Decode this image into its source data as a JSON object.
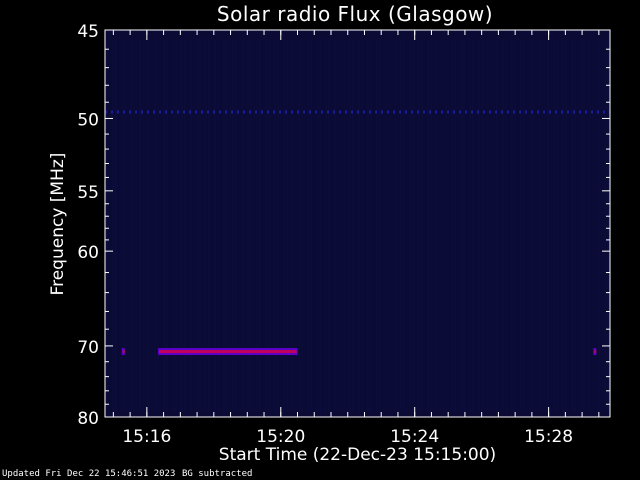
{
  "chart_data": {
    "type": "heatmap",
    "title": "Solar radio Flux (Glasgow)",
    "xlabel": "Start Time (22-Dec-23 15:15:00)",
    "ylabel": "Frequency [MHz]",
    "x_range": [
      "15:14:45",
      "15:29:50"
    ],
    "y_range": [
      45,
      80
    ],
    "x_ticks": [
      "15:16",
      "15:20",
      "15:24",
      "15:28"
    ],
    "y_ticks": [
      45,
      50,
      55,
      60,
      70,
      80
    ],
    "colors": {
      "background": "#000000",
      "field": "#0a0a35",
      "emission": "#c0005a",
      "emission_edge": "#5a00c8",
      "interference": "#1a1aa0"
    },
    "features": [
      {
        "kind": "interference-band",
        "freq_mhz": 49.6,
        "start": "15:14:45",
        "end": "15:29:50"
      },
      {
        "kind": "emission",
        "freq_mhz": 70.7,
        "start": "15:15:15",
        "end": "15:15:20"
      },
      {
        "kind": "emission",
        "freq_mhz": 70.7,
        "start": "15:16:20",
        "end": "15:20:30"
      },
      {
        "kind": "emission",
        "freq_mhz": 70.7,
        "start": "15:29:20",
        "end": "15:29:25"
      }
    ]
  },
  "footer": {
    "updated": "Updated Fri Dec 22 15:46:51 2023",
    "note": "BG subtracted"
  }
}
